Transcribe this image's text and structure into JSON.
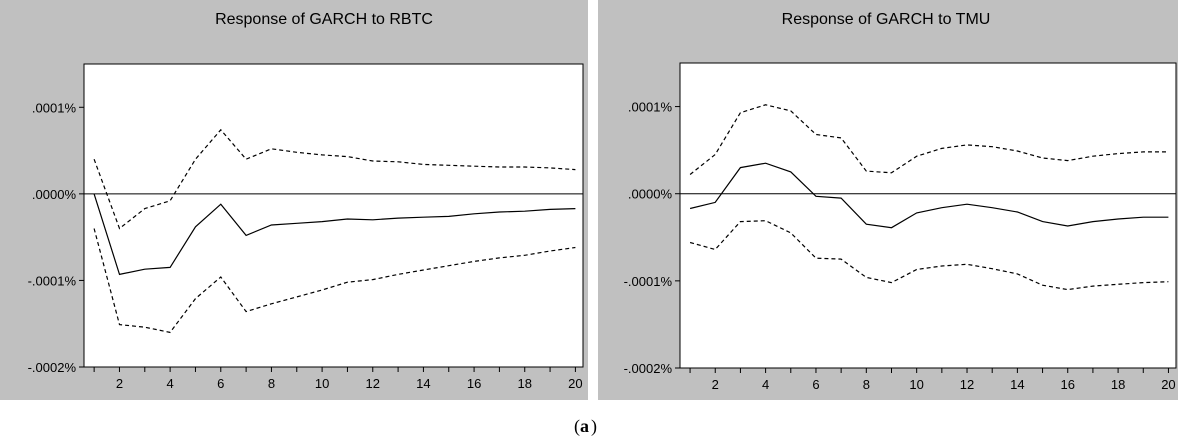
{
  "caption": {
    "open": "(",
    "letter": "a",
    "close": ")"
  },
  "chart_data": [
    {
      "type": "line",
      "title": "Response of GARCH to RBTC",
      "xlabel": "",
      "ylabel": "",
      "x": [
        1,
        2,
        3,
        4,
        5,
        6,
        7,
        8,
        9,
        10,
        11,
        12,
        13,
        14,
        15,
        16,
        17,
        18,
        19,
        20
      ],
      "x_ticks": [
        2,
        4,
        6,
        8,
        10,
        12,
        14,
        16,
        18,
        20
      ],
      "ylim": [
        -0.0002,
        0.00015
      ],
      "y_ticks": [
        {
          "value": 0.0001,
          "label": ".0001%"
        },
        {
          "value": 0.0,
          "label": ".0000%"
        },
        {
          "value": -0.0001,
          "label": "-.0001%"
        },
        {
          "value": -0.0002,
          "label": "-.0002%"
        }
      ],
      "zero_line": true,
      "grid": false,
      "series": [
        {
          "style": "solid",
          "color": "#000000",
          "values": [
            0.0,
            -9.3e-05,
            -8.7e-05,
            -8.5e-05,
            -3.8e-05,
            -1.2e-05,
            -4.8e-05,
            -3.6e-05,
            -3.4e-05,
            -3.2e-05,
            -2.9e-05,
            -3e-05,
            -2.8e-05,
            -2.7e-05,
            -2.6e-05,
            -2.3e-05,
            -2.1e-05,
            -2e-05,
            -1.8e-05,
            -1.7e-05
          ]
        },
        {
          "style": "dashed",
          "color": "#000000",
          "values": [
            4e-05,
            -4e-05,
            -1.7e-05,
            -8e-06,
            4e-05,
            7.4e-05,
            4e-05,
            5.2e-05,
            4.8e-05,
            4.5e-05,
            4.3e-05,
            3.8e-05,
            3.7e-05,
            3.4e-05,
            3.3e-05,
            3.2e-05,
            3.1e-05,
            3.1e-05,
            3e-05,
            2.8e-05
          ]
        },
        {
          "style": "dashed",
          "color": "#000000",
          "values": [
            -4e-05,
            -0.000151,
            -0.000154,
            -0.00016,
            -0.000121,
            -9.6e-05,
            -0.000136,
            -0.000127,
            -0.000119,
            -0.000111,
            -0.000102,
            -9.9e-05,
            -9.3e-05,
            -8.8e-05,
            -8.3e-05,
            -7.8e-05,
            -7.4e-05,
            -7.1e-05,
            -6.6e-05,
            -6.2e-05
          ]
        }
      ]
    },
    {
      "type": "line",
      "title": "Response of GARCH to TMU",
      "xlabel": "",
      "ylabel": "",
      "x": [
        1,
        2,
        3,
        4,
        5,
        6,
        7,
        8,
        9,
        10,
        11,
        12,
        13,
        14,
        15,
        16,
        17,
        18,
        19,
        20
      ],
      "x_ticks": [
        2,
        4,
        6,
        8,
        10,
        12,
        14,
        16,
        18,
        20
      ],
      "ylim": [
        -0.0002,
        0.00015
      ],
      "y_ticks": [
        {
          "value": 0.0001,
          "label": ".0001%"
        },
        {
          "value": 0.0,
          "label": ".0000%"
        },
        {
          "value": -0.0001,
          "label": "-.0001%"
        },
        {
          "value": -0.0002,
          "label": "-.0002%"
        }
      ],
      "zero_line": true,
      "grid": false,
      "series": [
        {
          "style": "solid",
          "color": "#000000",
          "values": [
            -1.7e-05,
            -1e-05,
            3e-05,
            3.5e-05,
            2.5e-05,
            -3e-06,
            -5e-06,
            -3.5e-05,
            -3.9e-05,
            -2.2e-05,
            -1.6e-05,
            -1.2e-05,
            -1.6e-05,
            -2.1e-05,
            -3.2e-05,
            -3.7e-05,
            -3.2e-05,
            -2.9e-05,
            -2.7e-05,
            -2.7e-05
          ]
        },
        {
          "style": "dashed",
          "color": "#000000",
          "values": [
            2.2e-05,
            4.5e-05,
            9.3e-05,
            0.000102,
            9.5e-05,
            6.8e-05,
            6.4e-05,
            2.6e-05,
            2.4e-05,
            4.3e-05,
            5.2e-05,
            5.6e-05,
            5.4e-05,
            4.9e-05,
            4.1e-05,
            3.8e-05,
            4.3e-05,
            4.6e-05,
            4.8e-05,
            4.8e-05
          ]
        },
        {
          "style": "dashed",
          "color": "#000000",
          "values": [
            -5.6e-05,
            -6.4e-05,
            -3.2e-05,
            -3.1e-05,
            -4.5e-05,
            -7.4e-05,
            -7.5e-05,
            -9.6e-05,
            -0.000102,
            -8.7e-05,
            -8.3e-05,
            -8.1e-05,
            -8.6e-05,
            -9.2e-05,
            -0.000105,
            -0.00011,
            -0.000106,
            -0.000104,
            -0.000102,
            -0.000101
          ]
        }
      ]
    }
  ]
}
